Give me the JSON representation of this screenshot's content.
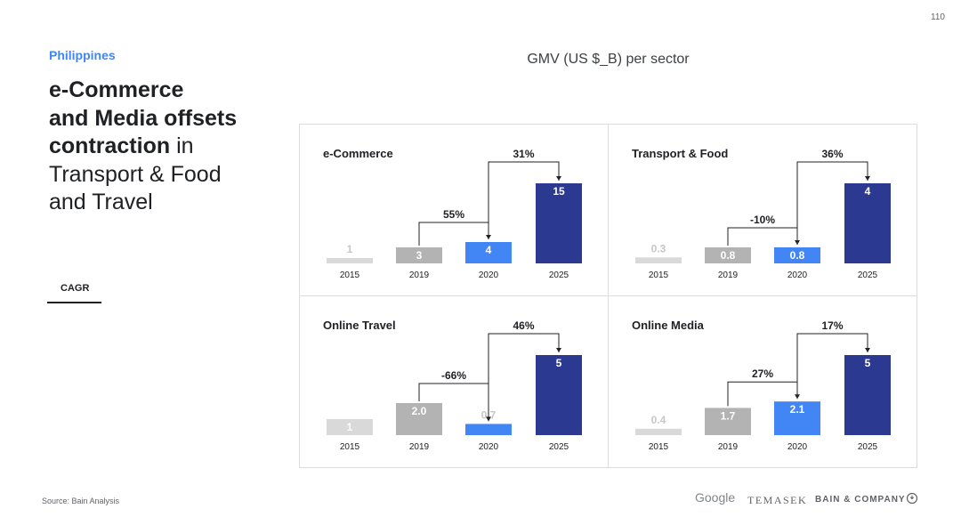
{
  "page_number": "110",
  "country": "Philippines",
  "headline": {
    "bold_lines": [
      "e-Commerce",
      "and Media offsets"
    ],
    "line3_bold": "contraction",
    "line3_rest": " in",
    "regular_lines": [
      "Transport & Food",
      "and Travel"
    ]
  },
  "cagr_label": "CAGR",
  "main_title": "GMV (US $_B) per sector",
  "source": "Source: Bain Analysis",
  "logos": {
    "google": "Google",
    "temasek": "TEMASEK",
    "bain": "BAIN & COMPANY"
  },
  "colors": {
    "y2015": "#d9d9d9",
    "y2019": "#b3b3b3",
    "y2020": "#4285f4",
    "y2025": "#2b3990",
    "accent": "#4285f4"
  },
  "chart_data": [
    {
      "type": "bar",
      "title": "e-Commerce",
      "categories": [
        "2015",
        "2019",
        "2020",
        "2025"
      ],
      "values": [
        1,
        3,
        4,
        15
      ],
      "labels": [
        "1",
        "3",
        "4",
        "15"
      ],
      "cagr": [
        {
          "from": "2019",
          "to": "2020",
          "label": "55%"
        },
        {
          "from": "2020",
          "to": "2025",
          "label": "31%"
        }
      ]
    },
    {
      "type": "bar",
      "title": "Transport & Food",
      "categories": [
        "2015",
        "2019",
        "2020",
        "2025"
      ],
      "values": [
        0.3,
        0.8,
        0.8,
        4
      ],
      "labels": [
        "0.3",
        "0.8",
        "0.8",
        "4"
      ],
      "cagr": [
        {
          "from": "2019",
          "to": "2020",
          "label": "-10%"
        },
        {
          "from": "2020",
          "to": "2025",
          "label": "36%"
        }
      ]
    },
    {
      "type": "bar",
      "title": "Online Travel",
      "categories": [
        "2015",
        "2019",
        "2020",
        "2025"
      ],
      "values": [
        1,
        2.0,
        0.7,
        5
      ],
      "labels": [
        "1",
        "2.0",
        "0.7",
        "5"
      ],
      "cagr": [
        {
          "from": "2019",
          "to": "2020",
          "label": "-66%"
        },
        {
          "from": "2020",
          "to": "2025",
          "label": "46%"
        }
      ]
    },
    {
      "type": "bar",
      "title": "Online Media",
      "categories": [
        "2015",
        "2019",
        "2020",
        "2025"
      ],
      "values": [
        0.4,
        1.7,
        2.1,
        5
      ],
      "labels": [
        "0.4",
        "1.7",
        "2.1",
        "5"
      ],
      "cagr": [
        {
          "from": "2019",
          "to": "2020",
          "label": "27%"
        },
        {
          "from": "2020",
          "to": "2025",
          "label": "17%"
        }
      ]
    }
  ]
}
